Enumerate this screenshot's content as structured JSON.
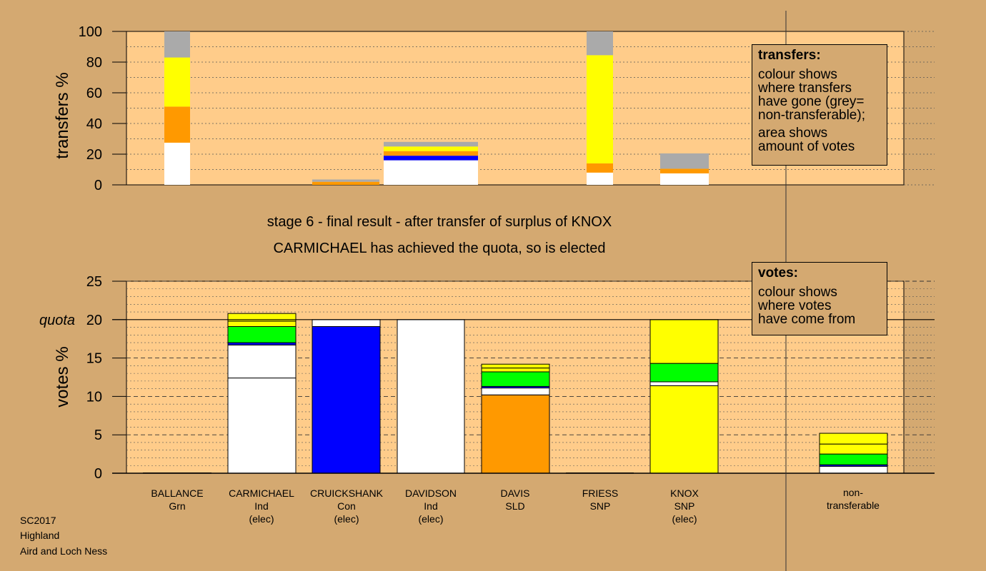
{
  "subtitle_line1": "stage 6 - final result - after transfer of surplus of KNOX",
  "subtitle_line2": "CARMICHAEL has achieved the quota, so is elected",
  "transfers_legend": {
    "title": "transfers:",
    "lines": [
      "colour shows",
      "where transfers",
      "have gone (grey=",
      "non-transferable);"
    ],
    "lines2": [
      "area shows",
      "amount of votes"
    ]
  },
  "votes_legend": {
    "title": "votes:",
    "lines": [
      "colour shows",
      "where votes",
      "have come from"
    ]
  },
  "footer": [
    "SC2017",
    "Highland",
    "Aird and Loch Ness"
  ],
  "colors": {
    "background": "#d4a971",
    "plot": "#ffcc8a",
    "Grn": "#00ff00",
    "Ind": "#ffffff",
    "Con": "#0000ff",
    "SLD": "#ff9900",
    "SNP": "#ffff00",
    "nontransferable": "#aaaaaa"
  },
  "chart_data": [
    {
      "type": "bar",
      "stacked": true,
      "ylabel": "transfers %",
      "ylim": [
        0,
        100
      ],
      "yticks": [
        0,
        20,
        40,
        60,
        80,
        100
      ],
      "grid": true,
      "bars": [
        {
          "candidate": "BALLANCE",
          "segments": [
            {
              "color": "Ind",
              "value": 27.5
            },
            {
              "color": "SLD",
              "value": 23.5
            },
            {
              "color": "SNP",
              "value": 32
            },
            {
              "color": "nontransferable",
              "value": 17
            }
          ]
        },
        {
          "candidate": "CRUICKSHANK",
          "segments": [
            {
              "color": "SLD",
              "value": 2
            },
            {
              "color": "nontransferable",
              "value": 1.5
            }
          ]
        },
        {
          "candidate": "DAVIDSON",
          "segments": [
            {
              "color": "Ind",
              "value": 16
            },
            {
              "color": "Con",
              "value": 3
            },
            {
              "color": "SLD",
              "value": 3
            },
            {
              "color": "SNP",
              "value": 3
            },
            {
              "color": "nontransferable",
              "value": 3
            }
          ]
        },
        {
          "candidate": "FRIESS",
          "segments": [
            {
              "color": "Ind",
              "value": 8
            },
            {
              "color": "SLD",
              "value": 6
            },
            {
              "color": "SNP",
              "value": 70.5
            },
            {
              "color": "nontransferable",
              "value": 15.5
            }
          ]
        },
        {
          "candidate": "KNOX",
          "segments": [
            {
              "color": "Ind",
              "value": 7.5
            },
            {
              "color": "SLD",
              "value": 3
            },
            {
              "color": "nontransferable",
              "value": 10
            }
          ]
        }
      ]
    },
    {
      "type": "bar",
      "stacked": true,
      "ylabel": "votes %",
      "ylim": [
        0,
        25
      ],
      "yticks": [
        0,
        5,
        10,
        15,
        20,
        25
      ],
      "quota": 20,
      "quota_label": "quota",
      "grid": true,
      "categories": [
        {
          "name": "BALLANCE",
          "lines": [
            "BALLANCE",
            "Grn"
          ]
        },
        {
          "name": "CARMICHAEL",
          "lines": [
            "CARMICHAEL",
            "Ind",
            "(elec)"
          ]
        },
        {
          "name": "CRUICKSHANK",
          "lines": [
            "CRUICKSHANK",
            "Con",
            "(elec)"
          ]
        },
        {
          "name": "DAVIDSON",
          "lines": [
            "DAVIDSON",
            "Ind",
            "(elec)"
          ]
        },
        {
          "name": "DAVIS",
          "lines": [
            "DAVIS",
            "SLD"
          ]
        },
        {
          "name": "FRIESS",
          "lines": [
            "FRIESS",
            "SNP"
          ]
        },
        {
          "name": "KNOX",
          "lines": [
            "KNOX",
            "SNP",
            "(elec)"
          ]
        },
        {
          "name": "non-transferable",
          "lines": [
            "non-",
            "transferable"
          ]
        }
      ],
      "bars": [
        {
          "candidate": "BALLANCE",
          "segments": []
        },
        {
          "candidate": "CARMICHAEL",
          "segments": [
            {
              "color": "Ind",
              "value": 12.4
            },
            {
              "color": "Ind",
              "value": 4.3
            },
            {
              "color": "Con",
              "value": 0.3
            },
            {
              "color": "Grn",
              "value": 2.1
            },
            {
              "color": "SNP",
              "value": 0.7
            },
            {
              "color": "SNP",
              "value": 1.0
            }
          ]
        },
        {
          "candidate": "CRUICKSHANK",
          "segments": [
            {
              "color": "Con",
              "value": 19.1
            },
            {
              "color": "Ind",
              "value": 0.9
            }
          ]
        },
        {
          "candidate": "DAVIDSON",
          "segments": [
            {
              "color": "Ind",
              "value": 20
            }
          ]
        },
        {
          "candidate": "DAVIS",
          "segments": [
            {
              "color": "SLD",
              "value": 10.2
            },
            {
              "color": "Ind",
              "value": 0.9
            },
            {
              "color": "Con",
              "value": 0.2
            },
            {
              "color": "Grn",
              "value": 1.9
            },
            {
              "color": "SNP",
              "value": 0.5
            },
            {
              "color": "SNP",
              "value": 0.5
            }
          ]
        },
        {
          "candidate": "FRIESS",
          "segments": []
        },
        {
          "candidate": "KNOX",
          "segments": [
            {
              "color": "SNP",
              "value": 11.4
            },
            {
              "color": "Ind",
              "value": 0.5
            },
            {
              "color": "Grn",
              "value": 2.4
            },
            {
              "color": "SNP",
              "value": 5.7
            }
          ]
        },
        {
          "candidate": "non-transferable",
          "segments": [
            {
              "color": "Ind",
              "value": 0.9
            },
            {
              "color": "Con",
              "value": 0.2
            },
            {
              "color": "Grn",
              "value": 1.4
            },
            {
              "color": "SNP",
              "value": 1.3
            },
            {
              "color": "SNP",
              "value": 1.4
            }
          ]
        }
      ]
    }
  ]
}
